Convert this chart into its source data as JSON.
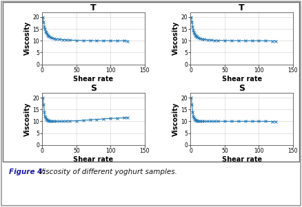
{
  "titles": [
    "T",
    "T",
    "S",
    "S"
  ],
  "xlabel": "Shear rate",
  "ylabel": "Viscosity",
  "xlim": [
    0,
    150
  ],
  "ylim": [
    0,
    22
  ],
  "yticks": [
    0,
    5,
    10,
    15,
    20
  ],
  "xticks": [
    0,
    50,
    100,
    150
  ],
  "shear_rate_T1": [
    1,
    2,
    3,
    4,
    5,
    6,
    7,
    8,
    9,
    10,
    12,
    14,
    17,
    20,
    25,
    30,
    35,
    40,
    50,
    60,
    70,
    80,
    90,
    100,
    110,
    120,
    125
  ],
  "viscosity_T1": [
    20,
    18,
    16,
    15,
    14,
    13.5,
    13,
    12.5,
    12,
    11.8,
    11.5,
    11.2,
    11,
    10.8,
    10.6,
    10.5,
    10.4,
    10.3,
    10.2,
    10.1,
    10.1,
    10.0,
    10.0,
    10.0,
    10.0,
    10.0,
    9.9
  ],
  "shear_rate_T2": [
    1,
    2,
    3,
    4,
    5,
    6,
    7,
    8,
    9,
    10,
    12,
    14,
    17,
    20,
    25,
    30,
    35,
    40,
    50,
    60,
    70,
    80,
    90,
    100,
    110,
    120,
    125
  ],
  "viscosity_T2": [
    20,
    18,
    16,
    14.5,
    13.5,
    13,
    12.5,
    12,
    11.8,
    11.5,
    11.2,
    11.0,
    10.8,
    10.6,
    10.4,
    10.3,
    10.2,
    10.15,
    10.1,
    10.05,
    10.05,
    10.0,
    10.0,
    10.0,
    10.0,
    9.9,
    9.9
  ],
  "shear_rate_S1": [
    1,
    2,
    3,
    4,
    5,
    6,
    7,
    8,
    9,
    10,
    12,
    14,
    17,
    20,
    25,
    30,
    35,
    40,
    50,
    60,
    70,
    80,
    90,
    100,
    110,
    120,
    125
  ],
  "viscosity_S1": [
    20,
    17,
    14,
    12,
    11.5,
    11,
    10.8,
    10.5,
    10.3,
    10.2,
    10.1,
    10.0,
    10.0,
    10.0,
    10.0,
    10.0,
    10.1,
    10.15,
    10.2,
    10.4,
    10.6,
    10.8,
    11.0,
    11.2,
    11.3,
    11.5,
    11.5
  ],
  "shear_rate_S2": [
    1,
    2,
    3,
    4,
    5,
    6,
    7,
    8,
    9,
    10,
    12,
    14,
    17,
    20,
    25,
    30,
    35,
    40,
    50,
    60,
    70,
    80,
    90,
    100,
    110,
    120,
    125
  ],
  "viscosity_S2": [
    20,
    17,
    14,
    12,
    11.5,
    11,
    10.8,
    10.5,
    10.3,
    10.2,
    10.1,
    10.0,
    10.0,
    10.0,
    10.0,
    10.0,
    10.0,
    10.0,
    10.0,
    10.0,
    10.0,
    10.0,
    10.0,
    10.0,
    10.0,
    9.9,
    9.9
  ],
  "line_color": "#1F77B4",
  "marker": "x",
  "marker_size": 2.5,
  "line_width": 0.8,
  "figure_bg": "#ffffff",
  "panel_bg": "#ffffff",
  "caption": "Figure 4: Viscosity of different yoghurt samples.",
  "caption_bold_part": "Figure 4:",
  "title_fontsize": 9,
  "axis_label_fontsize": 7,
  "tick_fontsize": 5.5,
  "caption_fontsize": 7.5,
  "outer_border_color": "#888888",
  "grid_color": "#d0d0d0"
}
